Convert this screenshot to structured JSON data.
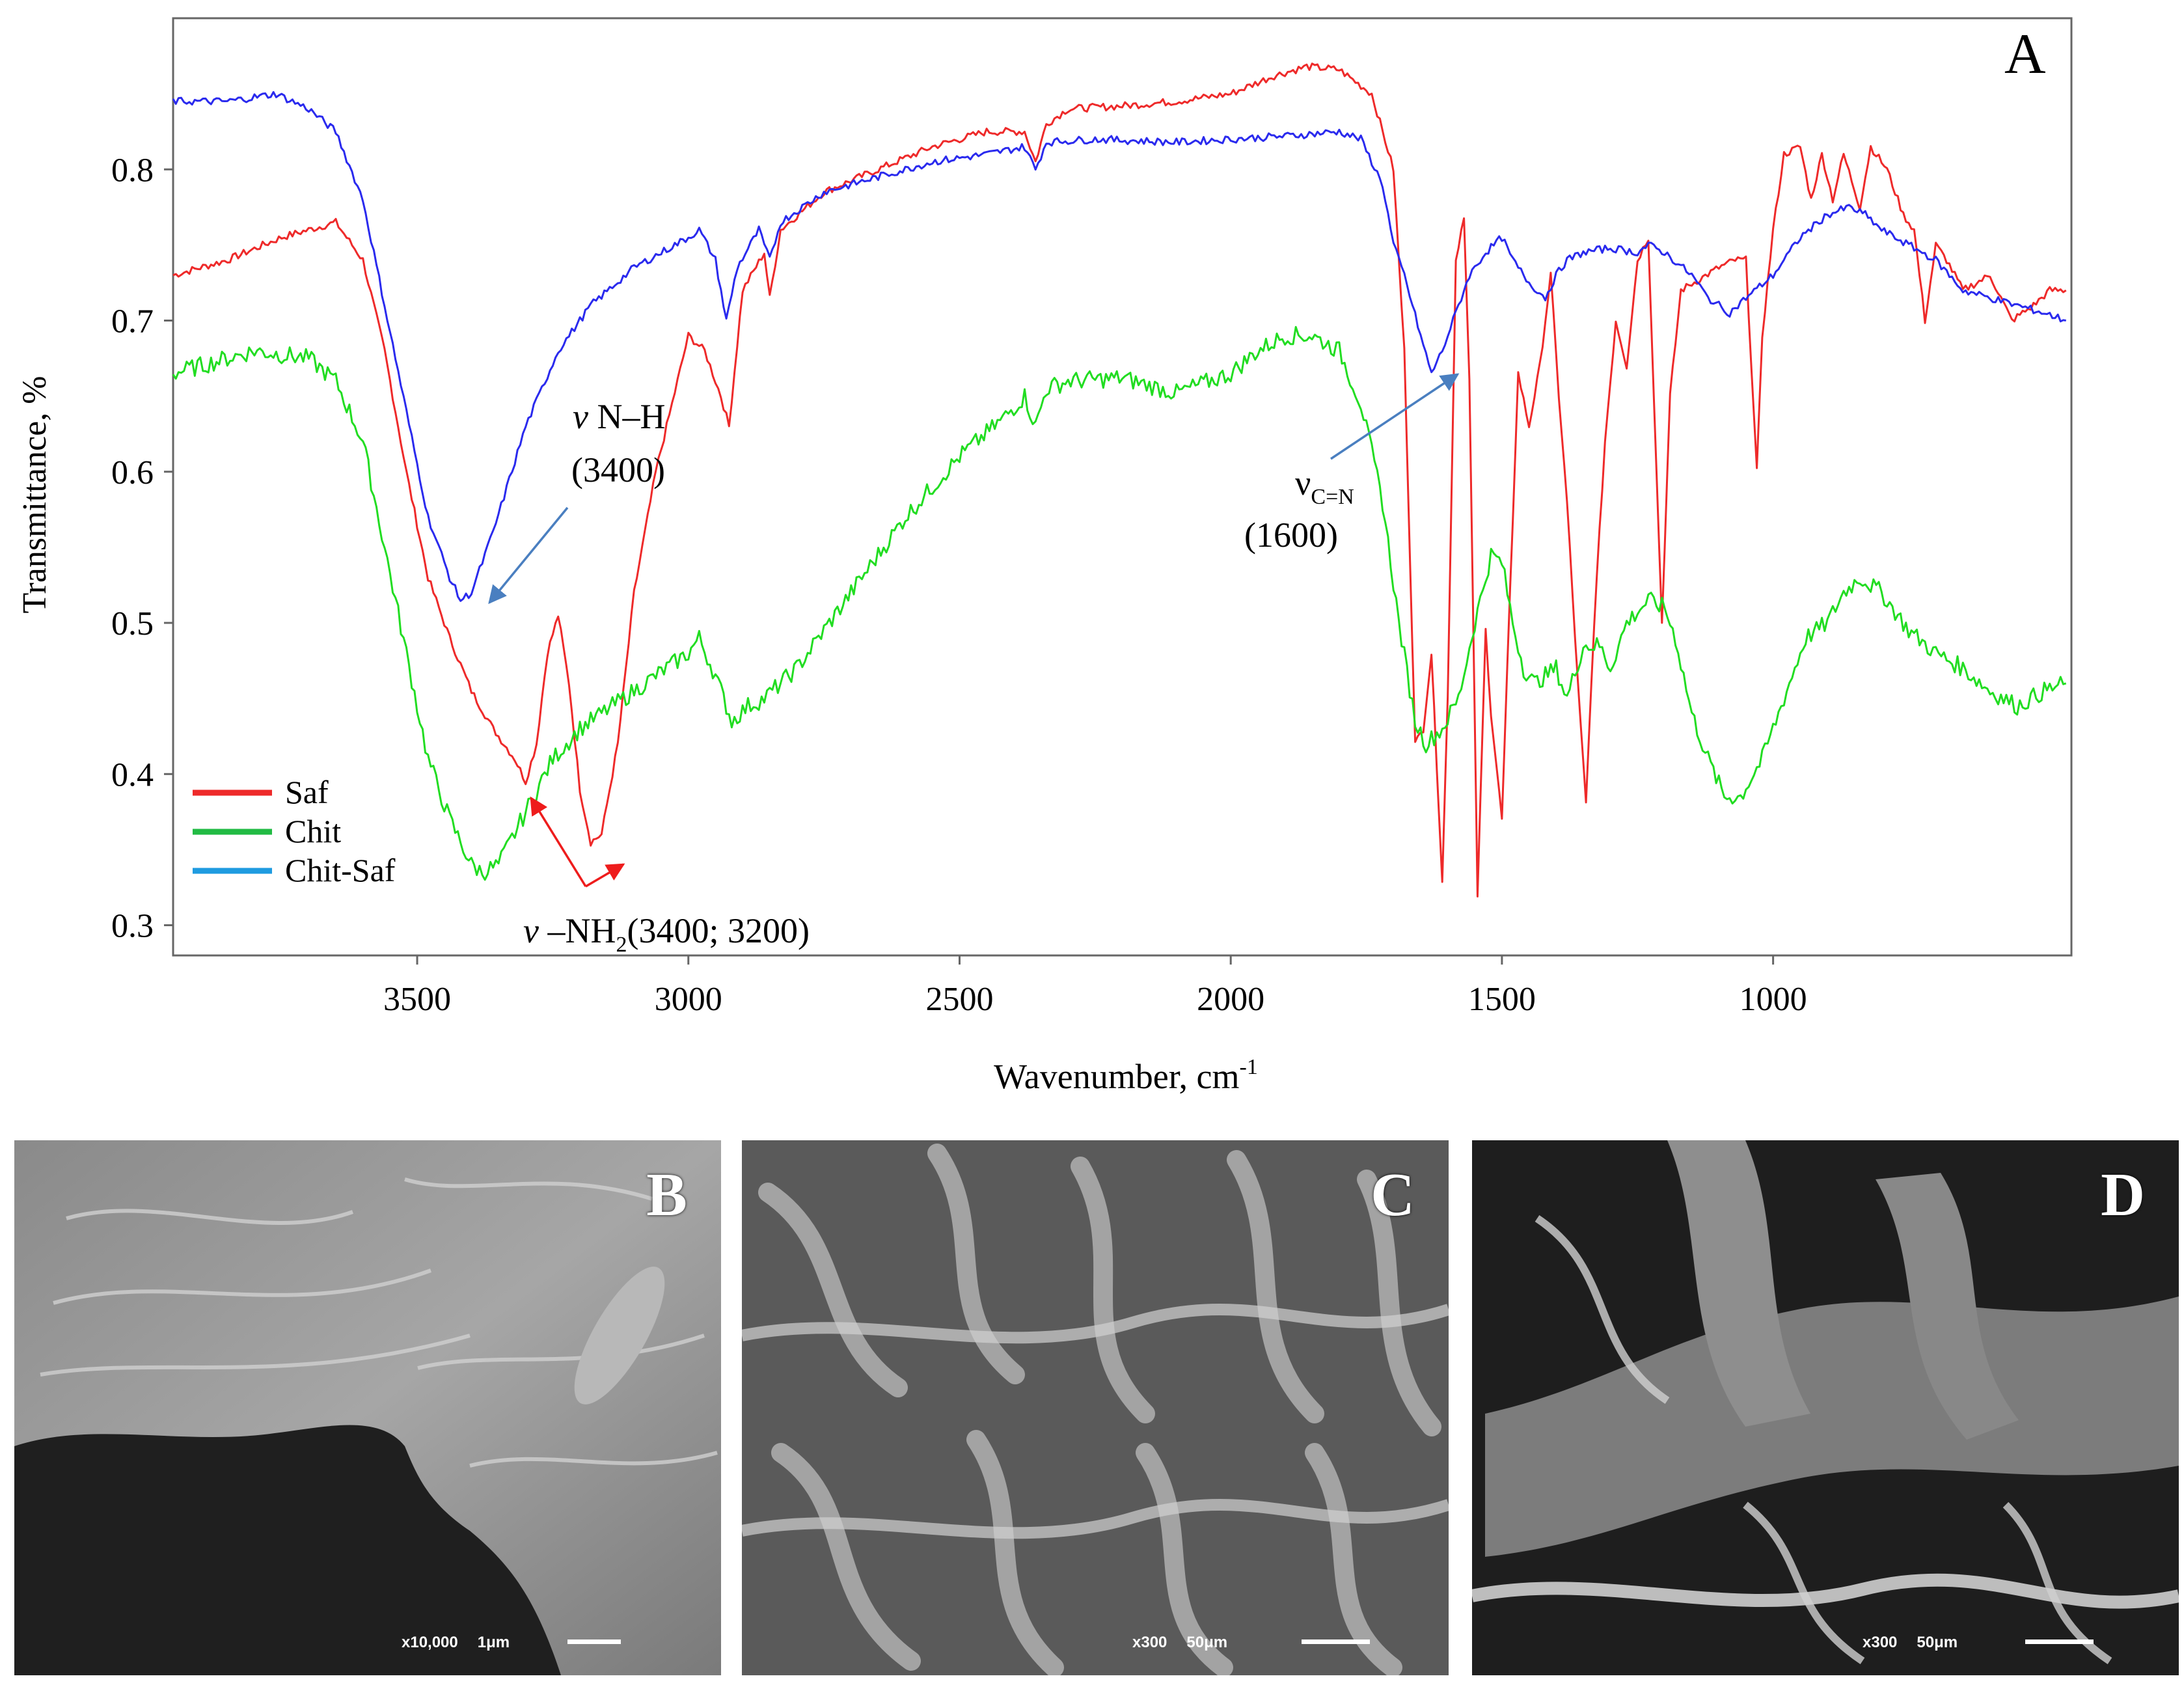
{
  "chart_data": {
    "type": "line",
    "panel_label": "A",
    "xlabel": "Wavenumber, cm",
    "xlabel_sup": "-1",
    "ylabel": "Transmittance, %",
    "xlim": [
      3950,
      450
    ],
    "ylim": [
      0.28,
      0.9
    ],
    "x_ticks": [
      3500,
      3000,
      2500,
      2000,
      1500,
      1000
    ],
    "y_ticks": [
      0.3,
      0.4,
      0.5,
      0.6,
      0.7,
      0.8
    ],
    "legend_position": "bottom-left",
    "series": [
      {
        "name": "Saf",
        "color": "#ee2a2a",
        "points": [
          [
            3950,
            0.73
          ],
          [
            3850,
            0.74
          ],
          [
            3750,
            0.755
          ],
          [
            3650,
            0.765
          ],
          [
            3600,
            0.74
          ],
          [
            3560,
            0.68
          ],
          [
            3520,
            0.6
          ],
          [
            3480,
            0.53
          ],
          [
            3440,
            0.49
          ],
          [
            3400,
            0.455
          ],
          [
            3360,
            0.43
          ],
          [
            3320,
            0.41
          ],
          [
            3300,
            0.395
          ],
          [
            3280,
            0.42
          ],
          [
            3260,
            0.48
          ],
          [
            3240,
            0.505
          ],
          [
            3220,
            0.46
          ],
          [
            3200,
            0.39
          ],
          [
            3180,
            0.355
          ],
          [
            3160,
            0.36
          ],
          [
            3130,
            0.42
          ],
          [
            3100,
            0.52
          ],
          [
            3060,
            0.6
          ],
          [
            3020,
            0.66
          ],
          [
            3000,
            0.69
          ],
          [
            2970,
            0.68
          ],
          [
            2940,
            0.65
          ],
          [
            2925,
            0.63
          ],
          [
            2900,
            0.72
          ],
          [
            2860,
            0.745
          ],
          [
            2850,
            0.715
          ],
          [
            2830,
            0.76
          ],
          [
            2750,
            0.785
          ],
          [
            2650,
            0.8
          ],
          [
            2550,
            0.815
          ],
          [
            2450,
            0.825
          ],
          [
            2380,
            0.825
          ],
          [
            2360,
            0.805
          ],
          [
            2340,
            0.83
          ],
          [
            2300,
            0.84
          ],
          [
            2200,
            0.842
          ],
          [
            2100,
            0.845
          ],
          [
            2000,
            0.85
          ],
          [
            1920,
            0.862
          ],
          [
            1860,
            0.868
          ],
          [
            1800,
            0.866
          ],
          [
            1740,
            0.85
          ],
          [
            1700,
            0.8
          ],
          [
            1680,
            0.68
          ],
          [
            1660,
            0.42
          ],
          [
            1645,
            0.43
          ],
          [
            1630,
            0.48
          ],
          [
            1610,
            0.33
          ],
          [
            1600,
            0.45
          ],
          [
            1585,
            0.74
          ],
          [
            1570,
            0.77
          ],
          [
            1560,
            0.66
          ],
          [
            1545,
            0.32
          ],
          [
            1530,
            0.495
          ],
          [
            1520,
            0.44
          ],
          [
            1500,
            0.37
          ],
          [
            1485,
            0.52
          ],
          [
            1470,
            0.665
          ],
          [
            1450,
            0.63
          ],
          [
            1430,
            0.67
          ],
          [
            1410,
            0.73
          ],
          [
            1395,
            0.65
          ],
          [
            1380,
            0.58
          ],
          [
            1360,
            0.46
          ],
          [
            1345,
            0.38
          ],
          [
            1330,
            0.5
          ],
          [
            1310,
            0.62
          ],
          [
            1290,
            0.7
          ],
          [
            1270,
            0.67
          ],
          [
            1250,
            0.74
          ],
          [
            1230,
            0.755
          ],
          [
            1215,
            0.6
          ],
          [
            1205,
            0.5
          ],
          [
            1190,
            0.65
          ],
          [
            1170,
            0.72
          ],
          [
            1100,
            0.735
          ],
          [
            1070,
            0.74
          ],
          [
            1050,
            0.74
          ],
          [
            1030,
            0.6
          ],
          [
            1020,
            0.69
          ],
          [
            1000,
            0.76
          ],
          [
            980,
            0.81
          ],
          [
            950,
            0.815
          ],
          [
            930,
            0.78
          ],
          [
            910,
            0.81
          ],
          [
            890,
            0.78
          ],
          [
            870,
            0.81
          ],
          [
            840,
            0.775
          ],
          [
            820,
            0.815
          ],
          [
            790,
            0.8
          ],
          [
            760,
            0.77
          ],
          [
            740,
            0.76
          ],
          [
            720,
            0.7
          ],
          [
            700,
            0.75
          ],
          [
            680,
            0.74
          ],
          [
            650,
            0.72
          ],
          [
            600,
            0.73
          ],
          [
            560,
            0.7
          ],
          [
            520,
            0.71
          ],
          [
            490,
            0.72
          ],
          [
            460,
            0.72
          ]
        ]
      },
      {
        "name": "Chit",
        "color": "#22dd22",
        "points": [
          [
            3950,
            0.665
          ],
          [
            3800,
            0.68
          ],
          [
            3700,
            0.675
          ],
          [
            3650,
            0.66
          ],
          [
            3600,
            0.62
          ],
          [
            3560,
            0.55
          ],
          [
            3520,
            0.48
          ],
          [
            3480,
            0.41
          ],
          [
            3440,
            0.37
          ],
          [
            3400,
            0.34
          ],
          [
            3380,
            0.335
          ],
          [
            3350,
            0.34
          ],
          [
            3300,
            0.375
          ],
          [
            3250,
            0.41
          ],
          [
            3200,
            0.43
          ],
          [
            3100,
            0.455
          ],
          [
            3000,
            0.48
          ],
          [
            2980,
            0.49
          ],
          [
            2950,
            0.465
          ],
          [
            2920,
            0.435
          ],
          [
            2890,
            0.445
          ],
          [
            2860,
            0.45
          ],
          [
            2800,
            0.47
          ],
          [
            2700,
            0.52
          ],
          [
            2600,
            0.57
          ],
          [
            2500,
            0.61
          ],
          [
            2420,
            0.635
          ],
          [
            2380,
            0.65
          ],
          [
            2360,
            0.63
          ],
          [
            2340,
            0.655
          ],
          [
            2300,
            0.66
          ],
          [
            2200,
            0.662
          ],
          [
            2100,
            0.652
          ],
          [
            2000,
            0.665
          ],
          [
            1950,
            0.68
          ],
          [
            1900,
            0.69
          ],
          [
            1850,
            0.69
          ],
          [
            1800,
            0.68
          ],
          [
            1760,
            0.645
          ],
          [
            1720,
            0.58
          ],
          [
            1690,
            0.5
          ],
          [
            1660,
            0.435
          ],
          [
            1640,
            0.42
          ],
          [
            1610,
            0.43
          ],
          [
            1580,
            0.45
          ],
          [
            1550,
            0.5
          ],
          [
            1520,
            0.545
          ],
          [
            1500,
            0.54
          ],
          [
            1480,
            0.5
          ],
          [
            1460,
            0.47
          ],
          [
            1440,
            0.46
          ],
          [
            1400,
            0.47
          ],
          [
            1380,
            0.45
          ],
          [
            1350,
            0.485
          ],
          [
            1320,
            0.485
          ],
          [
            1300,
            0.47
          ],
          [
            1270,
            0.5
          ],
          [
            1230,
            0.515
          ],
          [
            1200,
            0.51
          ],
          [
            1180,
            0.49
          ],
          [
            1150,
            0.44
          ],
          [
            1120,
            0.41
          ],
          [
            1090,
            0.385
          ],
          [
            1060,
            0.385
          ],
          [
            1020,
            0.41
          ],
          [
            980,
            0.45
          ],
          [
            940,
            0.49
          ],
          [
            900,
            0.5
          ],
          [
            870,
            0.52
          ],
          [
            840,
            0.53
          ],
          [
            800,
            0.52
          ],
          [
            750,
            0.495
          ],
          [
            700,
            0.48
          ],
          [
            650,
            0.47
          ],
          [
            600,
            0.455
          ],
          [
            550,
            0.445
          ],
          [
            500,
            0.455
          ],
          [
            460,
            0.46
          ]
        ]
      },
      {
        "name": "Chit-Saf",
        "color": "#2a2aee",
        "points": [
          [
            3950,
            0.845
          ],
          [
            3850,
            0.845
          ],
          [
            3760,
            0.85
          ],
          [
            3700,
            0.84
          ],
          [
            3650,
            0.825
          ],
          [
            3600,
            0.78
          ],
          [
            3560,
            0.71
          ],
          [
            3520,
            0.64
          ],
          [
            3480,
            0.57
          ],
          [
            3440,
            0.53
          ],
          [
            3420,
            0.515
          ],
          [
            3400,
            0.52
          ],
          [
            3360,
            0.56
          ],
          [
            3300,
            0.63
          ],
          [
            3240,
            0.68
          ],
          [
            3180,
            0.71
          ],
          [
            3100,
            0.735
          ],
          [
            3000,
            0.755
          ],
          [
            2980,
            0.76
          ],
          [
            2950,
            0.74
          ],
          [
            2930,
            0.7
          ],
          [
            2910,
            0.735
          ],
          [
            2870,
            0.76
          ],
          [
            2850,
            0.74
          ],
          [
            2830,
            0.765
          ],
          [
            2750,
            0.785
          ],
          [
            2650,
            0.795
          ],
          [
            2550,
            0.805
          ],
          [
            2450,
            0.81
          ],
          [
            2380,
            0.815
          ],
          [
            2360,
            0.8
          ],
          [
            2340,
            0.818
          ],
          [
            2250,
            0.82
          ],
          [
            2100,
            0.818
          ],
          [
            2000,
            0.82
          ],
          [
            1900,
            0.822
          ],
          [
            1800,
            0.825
          ],
          [
            1760,
            0.82
          ],
          [
            1720,
            0.79
          ],
          [
            1700,
            0.75
          ],
          [
            1680,
            0.73
          ],
          [
            1650,
            0.69
          ],
          [
            1630,
            0.665
          ],
          [
            1610,
            0.68
          ],
          [
            1590,
            0.7
          ],
          [
            1560,
            0.73
          ],
          [
            1530,
            0.745
          ],
          [
            1500,
            0.755
          ],
          [
            1480,
            0.74
          ],
          [
            1450,
            0.725
          ],
          [
            1420,
            0.715
          ],
          [
            1400,
            0.73
          ],
          [
            1380,
            0.74
          ],
          [
            1350,
            0.745
          ],
          [
            1300,
            0.748
          ],
          [
            1250,
            0.745
          ],
          [
            1230,
            0.75
          ],
          [
            1200,
            0.745
          ],
          [
            1150,
            0.73
          ],
          [
            1120,
            0.715
          ],
          [
            1080,
            0.705
          ],
          [
            1050,
            0.715
          ],
          [
            1000,
            0.73
          ],
          [
            950,
            0.755
          ],
          [
            900,
            0.77
          ],
          [
            860,
            0.775
          ],
          [
            830,
            0.77
          ],
          [
            800,
            0.76
          ],
          [
            750,
            0.75
          ],
          [
            700,
            0.74
          ],
          [
            650,
            0.72
          ],
          [
            600,
            0.715
          ],
          [
            550,
            0.71
          ],
          [
            500,
            0.705
          ],
          [
            460,
            0.7
          ]
        ]
      }
    ],
    "annotations": [
      {
        "id": "nh",
        "italic": "v",
        "text": " N–H",
        "sub": "",
        "value": "(3400)"
      },
      {
        "id": "cn",
        "italic": "",
        "text": "ν",
        "sub": "C=N",
        "value": "(1600)"
      },
      {
        "id": "nh2",
        "italic": "v",
        "text": " –NH",
        "sub": "2",
        "value": "(3400; 3200)"
      }
    ]
  },
  "panels": [
    {
      "letter": "B",
      "magnification": "x10,000",
      "scale": "1μm"
    },
    {
      "letter": "C",
      "magnification": "x300",
      "scale": "50μm"
    },
    {
      "letter": "D",
      "magnification": "x300",
      "scale": "50μm"
    }
  ]
}
